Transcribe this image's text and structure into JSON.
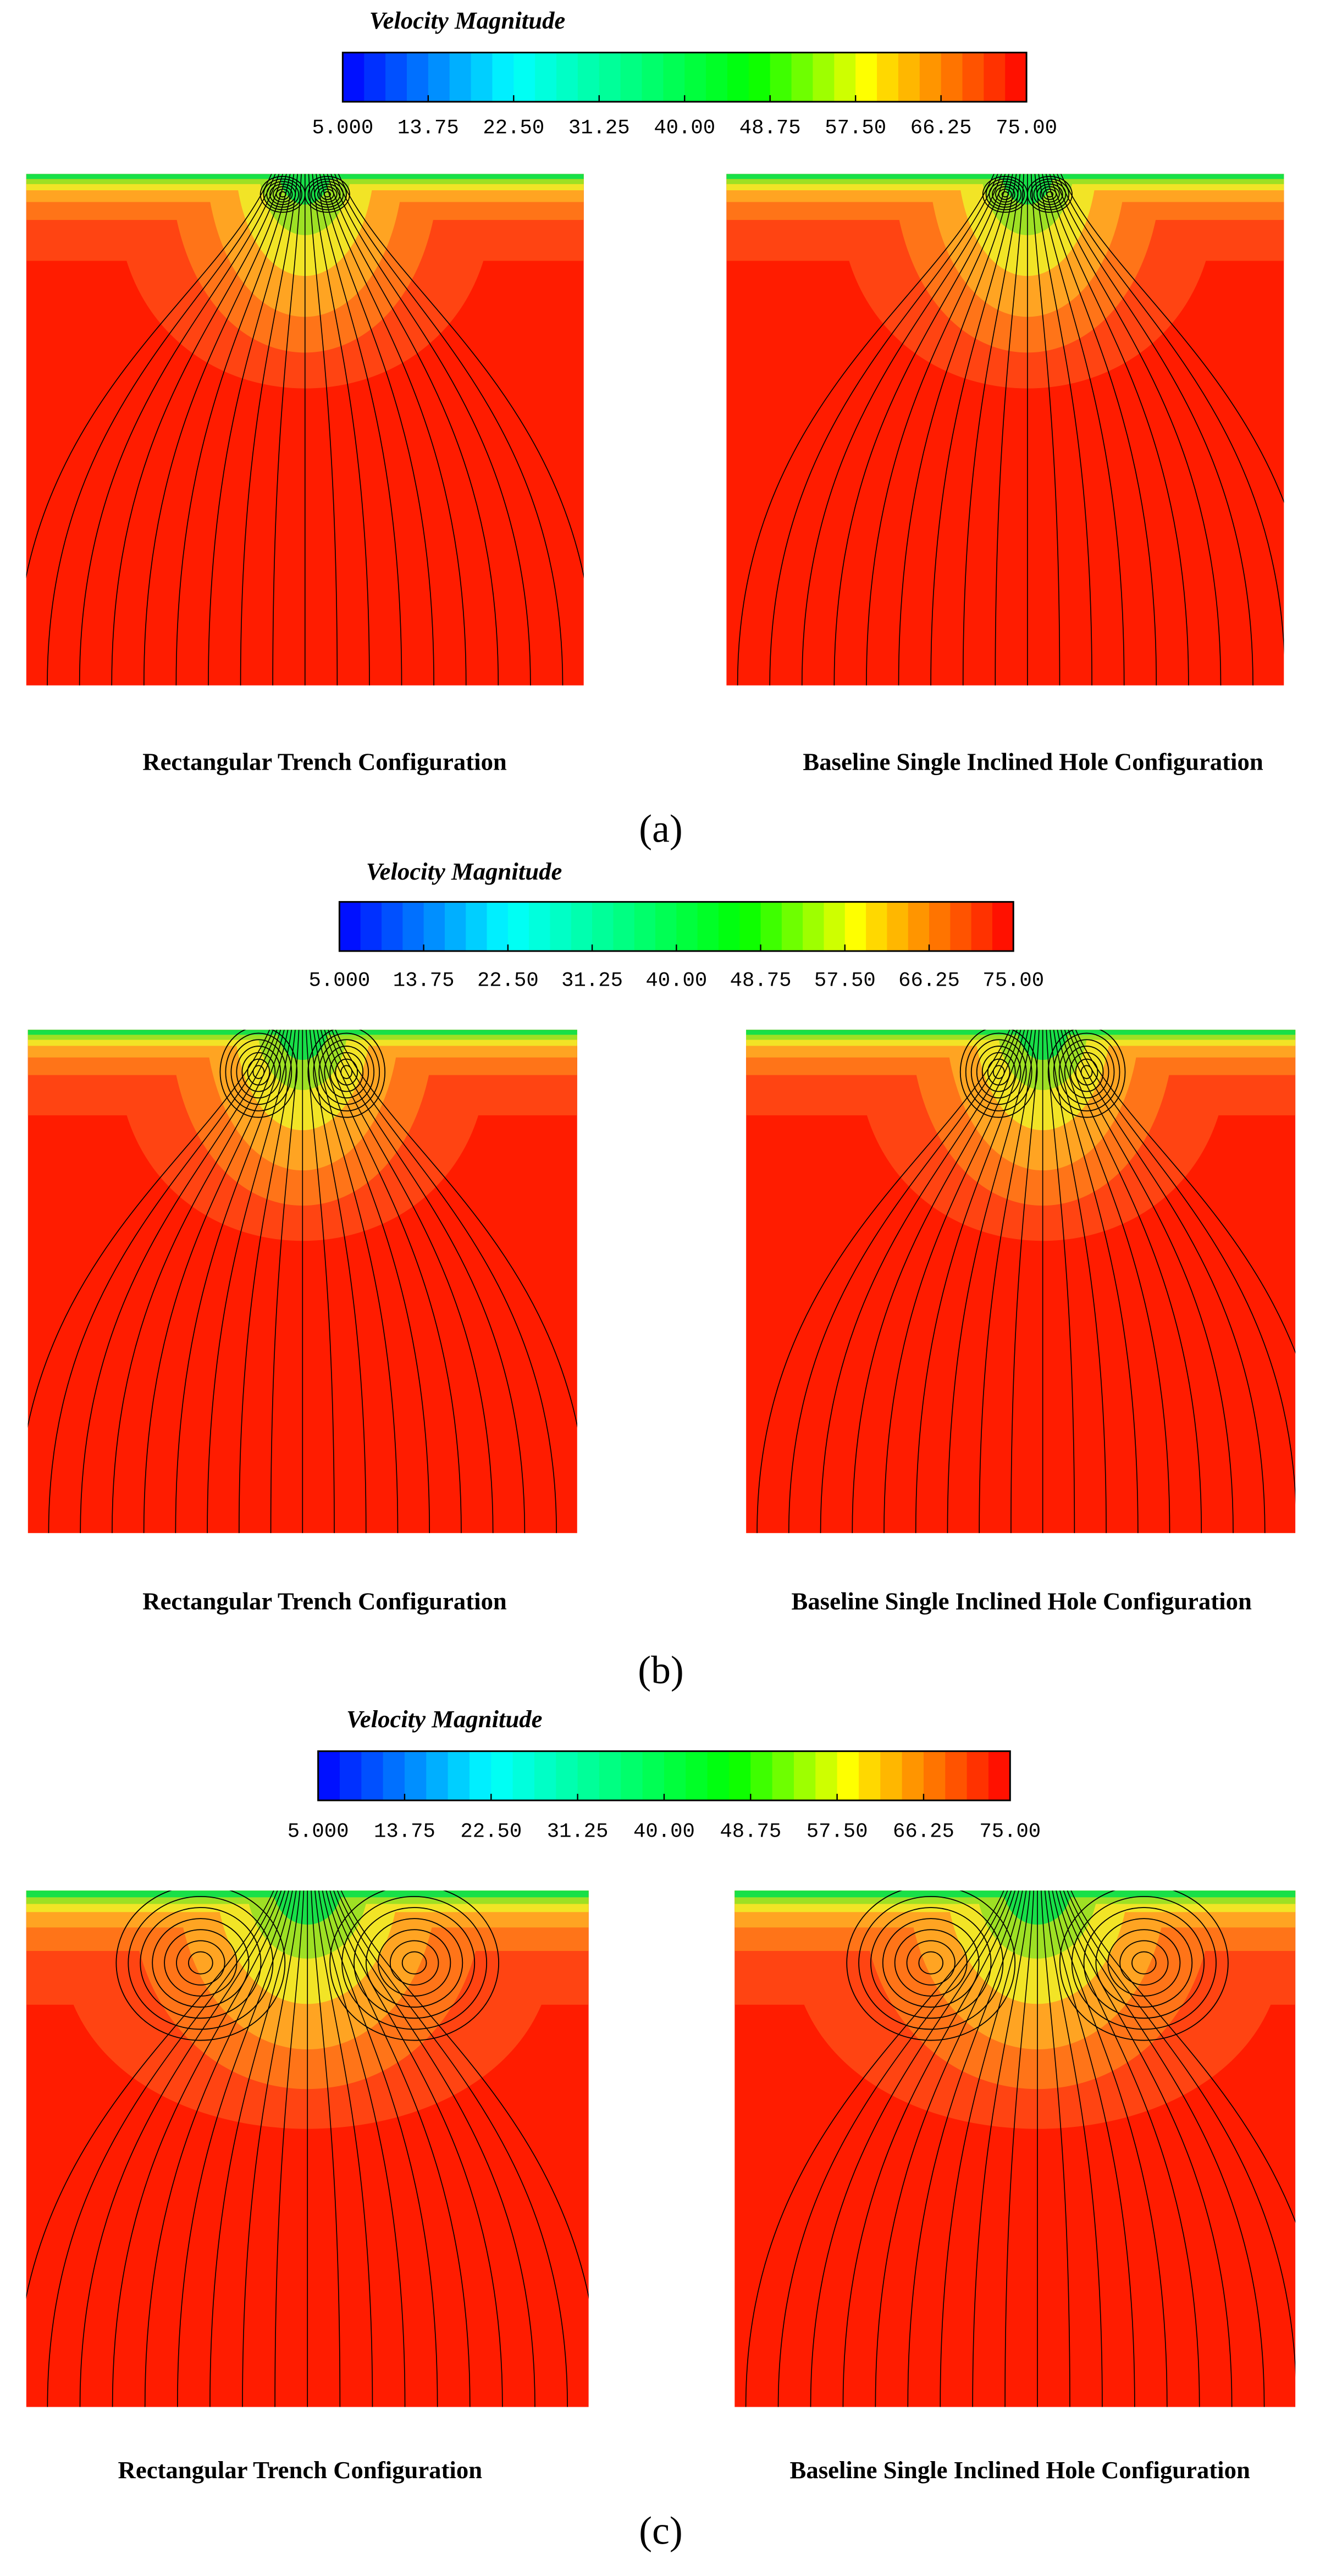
{
  "panels": [
    {
      "label": "(a)",
      "colorbar": {
        "title": "Velocity Magnitude",
        "lim": [
          5,
          75
        ],
        "ticks": [
          {
            "value": 5,
            "label": "5.000"
          },
          13.75,
          {
            "value": 22.5,
            "label": "22.50"
          },
          31.25,
          {
            "value": 40,
            "label": "40.00"
          },
          48.75,
          {
            "value": 57.5,
            "label": "57.50"
          },
          66.25,
          {
            "value": 75,
            "label": "75.00"
          }
        ]
      },
      "plots": [
        {
          "caption": "Rectangular Trench Configuration"
        },
        {
          "caption": "Baseline Single Inclined Hole Configuration"
        }
      ]
    },
    {
      "label": "(b)",
      "colorbar": {
        "title": "Velocity Magnitude",
        "lim": [
          5,
          75
        ],
        "ticks": [
          {
            "value": 5,
            "label": "5.000"
          },
          13.75,
          {
            "value": 22.5,
            "label": "22.50"
          },
          31.25,
          {
            "value": 40,
            "label": "40.00"
          },
          48.75,
          {
            "value": 57.5,
            "label": "57.50"
          },
          66.25,
          {
            "value": 75,
            "label": "75.00"
          }
        ]
      },
      "plots": [
        {
          "caption": "Rectangular Trench Configuration"
        },
        {
          "caption": "Baseline Single Inclined Hole Configuration"
        }
      ]
    },
    {
      "label": "(c)",
      "colorbar": {
        "title": "Velocity Magnitude",
        "lim": [
          5,
          75
        ],
        "ticks": [
          {
            "value": 5,
            "label": "5.000"
          },
          13.75,
          {
            "value": 22.5,
            "label": "22.50"
          },
          31.25,
          {
            "value": 40,
            "label": "40.00"
          },
          48.75,
          {
            "value": 57.5,
            "label": "57.50"
          },
          66.25,
          {
            "value": 75,
            "label": "75.00"
          }
        ]
      },
      "plots": [
        {
          "caption": "Rectangular Trench Configuration"
        },
        {
          "caption": "Baseline Single Inclined Hole Configuration"
        }
      ]
    }
  ]
}
